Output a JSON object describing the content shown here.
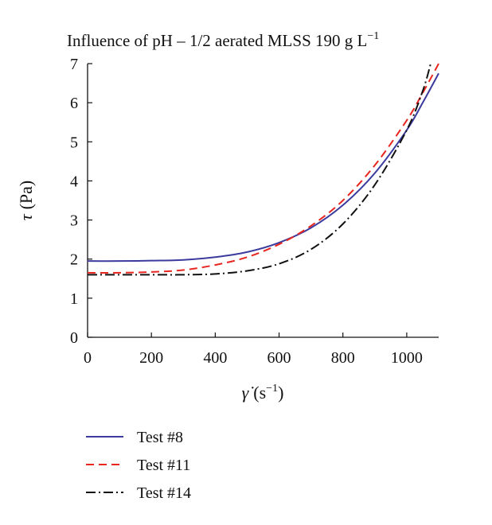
{
  "chart_data": {
    "type": "line",
    "title": "Influence of pH – 1/2 aerated MLSS 190 g L",
    "title_sup": "−1",
    "xlabel_symbol": "γ̇",
    "xlabel_unit": "(s",
    "xlabel_unit_sup": "−1",
    "xlabel_close": ")",
    "ylabel_symbol": "τ",
    "ylabel_unit": "(Pa)",
    "xlim": [
      0,
      1100
    ],
    "ylim": [
      0,
      7
    ],
    "xticks": [
      "0",
      "200",
      "400",
      "600",
      "800",
      "1000"
    ],
    "yticks": [
      "0",
      "1",
      "2",
      "3",
      "4",
      "5",
      "6",
      "7"
    ],
    "grid": false,
    "legend_position": "bottom",
    "series": [
      {
        "name": "Test #8",
        "color": "#3b3b9e",
        "dash": "solid",
        "points": [
          [
            0,
            1.95
          ],
          [
            100,
            1.95
          ],
          [
            200,
            1.96
          ],
          [
            300,
            1.98
          ],
          [
            400,
            2.05
          ],
          [
            500,
            2.18
          ],
          [
            600,
            2.42
          ],
          [
            700,
            2.8
          ],
          [
            800,
            3.38
          ],
          [
            900,
            4.2
          ],
          [
            1000,
            5.3
          ],
          [
            1050,
            6.0
          ],
          [
            1100,
            6.75
          ]
        ]
      },
      {
        "name": "Test #11",
        "color": "#e8251f",
        "dash": "dashed",
        "points": [
          [
            0,
            1.65
          ],
          [
            100,
            1.65
          ],
          [
            200,
            1.67
          ],
          [
            300,
            1.72
          ],
          [
            400,
            1.85
          ],
          [
            500,
            2.05
          ],
          [
            600,
            2.38
          ],
          [
            700,
            2.85
          ],
          [
            800,
            3.5
          ],
          [
            900,
            4.4
          ],
          [
            1000,
            5.55
          ],
          [
            1050,
            6.25
          ],
          [
            1100,
            7.0
          ]
        ]
      },
      {
        "name": "Test #14",
        "color": "#111111",
        "dash": "dashdot",
        "points": [
          [
            0,
            1.6
          ],
          [
            100,
            1.6
          ],
          [
            200,
            1.6
          ],
          [
            300,
            1.6
          ],
          [
            400,
            1.62
          ],
          [
            500,
            1.7
          ],
          [
            600,
            1.88
          ],
          [
            700,
            2.25
          ],
          [
            800,
            2.9
          ],
          [
            900,
            3.9
          ],
          [
            1000,
            5.3
          ],
          [
            1050,
            6.3
          ],
          [
            1075,
            7.0
          ]
        ]
      }
    ]
  }
}
